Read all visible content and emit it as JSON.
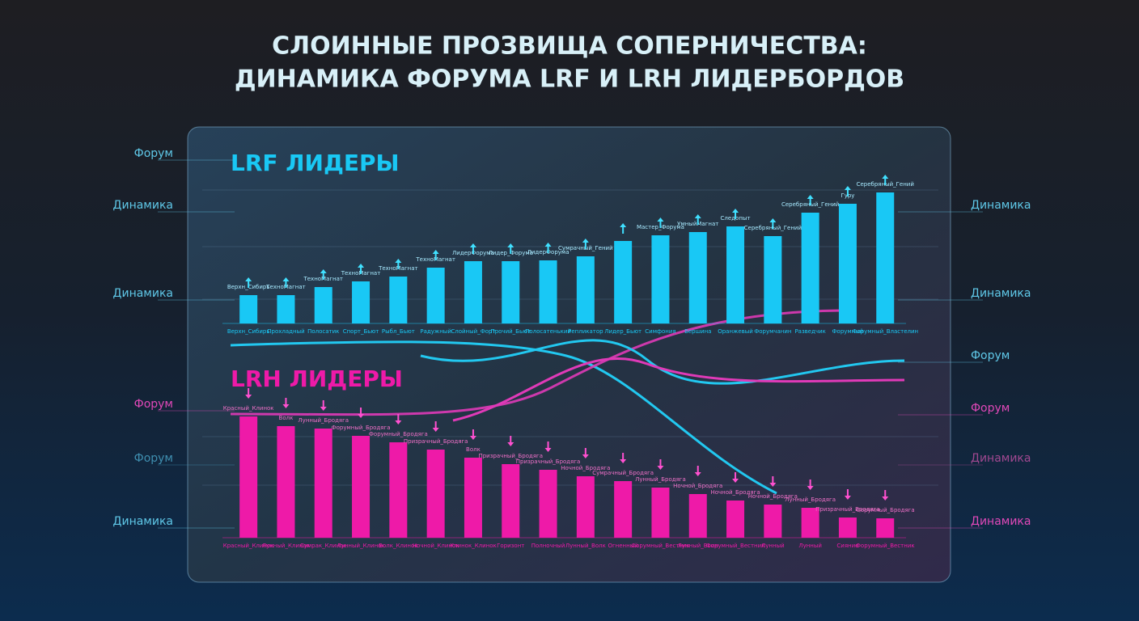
{
  "header": {
    "title": [
      "СЛОИННЫЕ ПРОЗВИЩА СОПЕРНИЧЕСТВА:",
      "ДИНАМИКА ФОРУМА LRF И LRH ЛИДЕРБОРДОВ"
    ]
  },
  "side_labels": {
    "left": [
      {
        "text": "Форум",
        "color": "#5fc8e8"
      },
      {
        "text": "Динамика",
        "color": "#5fc8e8"
      },
      {
        "text": "Динамика",
        "color": "#5fc8e8"
      },
      {
        "text": "Форум",
        "color": "#e048b8"
      },
      {
        "text": "Форум",
        "color": "#3f8fb0"
      },
      {
        "text": "Динамика",
        "color": "#5fc8e8"
      }
    ],
    "right": [
      {
        "text": "Динамика",
        "color": "#5fc8e8"
      },
      {
        "text": "Динамика",
        "color": "#5fc8e8"
      },
      {
        "text": "Форум",
        "color": "#5fc8e8"
      },
      {
        "text": "Форум",
        "color": "#e048b8"
      },
      {
        "text": "Динамика",
        "color": "#a04890"
      },
      {
        "text": "Динамика",
        "color": "#e048b8"
      }
    ]
  },
  "chart_data": [
    {
      "type": "bar",
      "title": "LRF ЛИДЕРЫ",
      "color": "#19c8f5",
      "ylim": [
        0,
        170
      ],
      "categories": [
        "Верхн_Сибирь",
        "Прохладный",
        "Полосатик",
        "Спорт_Бьют",
        "Рыбл_Бьют",
        "Радужный",
        "Слойный_Форт",
        "Прочий_Бьют",
        "Полосатенький",
        "Репликатор",
        "Лидер_Бьют",
        "Симфония",
        "Вершина",
        "Оранжевый",
        "Форумчанин",
        "Разведчик",
        "Форумный",
        "Форумный_Властелин"
      ],
      "top_labels": [
        "Верхн_Сибирь",
        "ТехноМагнат",
        "ТехноМагнат",
        "ТехноМагнат",
        "ТехноМагнат",
        "ТехноМагнат",
        "ЛидерФорума",
        "Лидер_Форума",
        "ЛидерФорума",
        "Сумрачный_Гений",
        null,
        "Мастер_Форума",
        "УмныйМагнат",
        "Следопыт",
        "Серебряный_Гений",
        "Серебряный_Гений",
        "Гуру",
        "Серебряный_Гений"
      ],
      "values": [
        35,
        35,
        45,
        52,
        58,
        69,
        77,
        77,
        78,
        83,
        102,
        109,
        113,
        120,
        108,
        137,
        148,
        162
      ]
    },
    {
      "type": "bar",
      "title": "LRH ЛИДЕРЫ",
      "color": "#ee1aa8",
      "ylim": [
        0,
        170
      ],
      "categories": [
        "Красный_Клинок",
        "Лунный_Клинок",
        "Сумрак_Клинок",
        "Лунный_Клинок",
        "Волк_Клинок",
        "Ночной_Клинок",
        "Клинок_Клинок",
        "Горизонт",
        "Полночный",
        "Лунный_Волк",
        "Огненный",
        "Форумный_Вестник",
        "Лунный_Воин",
        "Форумный_Вестник",
        "Лунный",
        "Лунный",
        "Сияние",
        "Форумный_Вестник"
      ],
      "top_labels": [
        "Красный_Клинок",
        "Волк",
        "Лунный_Бродяга",
        "Форумный_Бродяга",
        "Форумный_Бродяга",
        "Призрачный_Бродяга",
        "Волк",
        "Призрачный_Бродяга",
        "Призрачный_Бродяга",
        "Ночной_Бродяга",
        "Сумрачный_Бродяга",
        "Лунный_Бродяга",
        "Ночной_Бродяга",
        "Ночной_Бродяга",
        "Ночной_Бродяга",
        "Лунный_Бродяга",
        "Призрачный_Бродяга",
        "Форумный_Бродяга"
      ],
      "values": [
        150,
        138,
        135,
        126,
        118,
        109,
        99,
        91,
        84,
        76,
        70,
        62,
        54,
        46,
        41,
        37,
        25,
        24
      ]
    }
  ]
}
